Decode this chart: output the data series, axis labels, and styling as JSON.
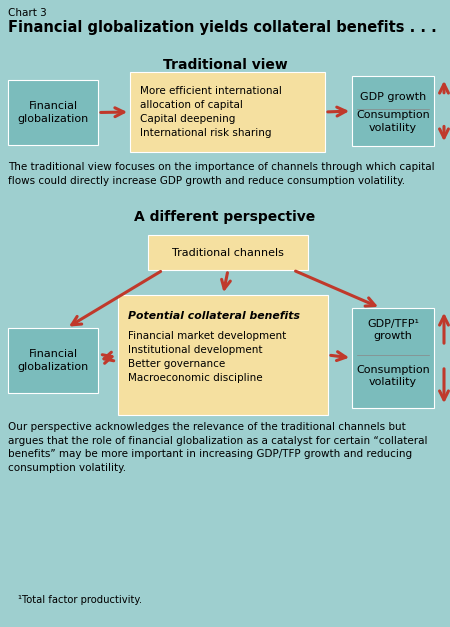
{
  "chart_label": "Chart 3",
  "title": "Financial globalization yields collateral benefits . . .",
  "bg_color": "#9ecfcf",
  "section1_title": "Traditional view",
  "section2_title": "A different perspective",
  "box_teal": "#7bbcbc",
  "box_cream": "#f5e0a0",
  "arrow_color": "#c0392b",
  "text_color": "#000000",
  "trad_left_box": "Financial\nglobalization",
  "trad_mid_line1": "More efficient international",
  "trad_mid_line2": "allocation of capital",
  "trad_mid_line3": "Capital deepening",
  "trad_mid_line4": "International risk sharing",
  "trad_right_line1": "GDP growth",
  "trad_right_line2": "Consumption",
  "trad_right_line3": "volatility",
  "trad_caption": "The traditional view focuses on the importance of channels through which capital\nflows could directly increase GDP growth and reduce consumption volatility.",
  "diff_top_box": "Traditional channels",
  "diff_left_box": "Financial\nglobalization",
  "diff_mid_bold": "Potential collateral benefits",
  "diff_mid_line1": "Financial market development",
  "diff_mid_line2": "Institutional development",
  "diff_mid_line3": "Better governance",
  "diff_mid_line4": "Macroeconomic discipline",
  "diff_right_line1": "GDP/TFP¹",
  "diff_right_line2": "growth",
  "diff_right_line3": "Consumption",
  "diff_right_line4": "volatility",
  "diff_caption": "Our perspective acknowledges the relevance of the traditional channels but\nargues that the role of financial globalization as a catalyst for certain “collateral\nbenefits” may be more important in increasing GDP/TFP growth and reducing\nconsumption volatility.",
  "footnote": "¹Total factor productivity."
}
